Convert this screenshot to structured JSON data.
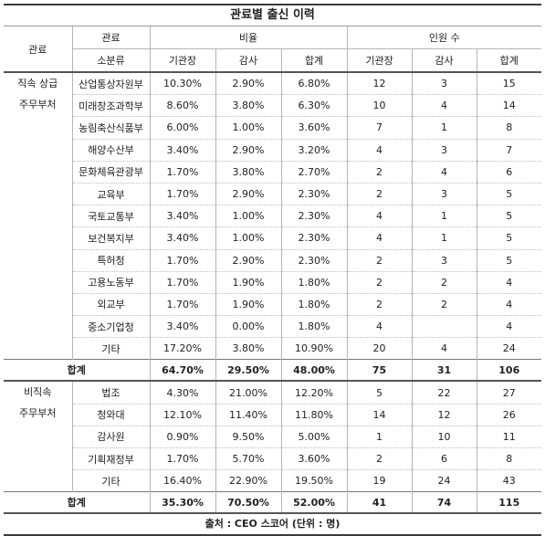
{
  "title": "관료별 출신 이력",
  "header": {
    "left_top": "관료",
    "left_sub": "관료",
    "left_sub2": "소분류",
    "ratio": "비율",
    "count": "인원 수",
    "cols": [
      "기관장",
      "감사",
      "합계",
      "기관장",
      "감사",
      "합계"
    ]
  },
  "group1": {
    "label_line1": "직속 상급",
    "label_line2": "주무부처",
    "rows": [
      {
        "name": "산업통상자원부",
        "vals": [
          "10.30%",
          "2.90%",
          "6.80%",
          "12",
          "3",
          "15"
        ]
      },
      {
        "name": "미래창조과학부",
        "vals": [
          "8.60%",
          "3.80%",
          "6.30%",
          "10",
          "4",
          "14"
        ]
      },
      {
        "name": "농림축산식품부",
        "vals": [
          "6.00%",
          "1.00%",
          "3.60%",
          "7",
          "1",
          "8"
        ]
      },
      {
        "name": "해양수산부",
        "vals": [
          "3.40%",
          "2.90%",
          "3.20%",
          "4",
          "3",
          "7"
        ]
      },
      {
        "name": "문화체육관광부",
        "vals": [
          "1.70%",
          "3.80%",
          "2.70%",
          "2",
          "4",
          "6"
        ]
      },
      {
        "name": "교육부",
        "vals": [
          "1.70%",
          "2.90%",
          "2.30%",
          "2",
          "3",
          "5"
        ]
      },
      {
        "name": "국토교통부",
        "vals": [
          "3.40%",
          "1.00%",
          "2.30%",
          "4",
          "1",
          "5"
        ]
      },
      {
        "name": "보건복지부",
        "vals": [
          "3.40%",
          "1.00%",
          "2.30%",
          "4",
          "1",
          "5"
        ]
      },
      {
        "name": "특허청",
        "vals": [
          "1.70%",
          "2.90%",
          "2.30%",
          "2",
          "3",
          "5"
        ]
      },
      {
        "name": "고용노동부",
        "vals": [
          "1.70%",
          "1.90%",
          "1.80%",
          "2",
          "2",
          "4"
        ]
      },
      {
        "name": "외교부",
        "vals": [
          "1.70%",
          "1.90%",
          "1.80%",
          "2",
          "2",
          "4"
        ]
      },
      {
        "name": "중소기업청",
        "vals": [
          "3.40%",
          "0.00%",
          "1.80%",
          "4",
          "",
          "4"
        ]
      },
      {
        "name": "기타",
        "vals": [
          "17.20%",
          "3.80%",
          "10.90%",
          "20",
          "4",
          "24"
        ]
      }
    ],
    "total": {
      "label": "합계",
      "vals": [
        "64.70%",
        "29.50%",
        "48.00%",
        "75",
        "31",
        "106"
      ]
    }
  },
  "group2": {
    "label_line1": "비직속",
    "label_line2": "주무부처",
    "rows": [
      {
        "name": "법조",
        "vals": [
          "4.30%",
          "21.00%",
          "12.20%",
          "5",
          "22",
          "27"
        ]
      },
      {
        "name": "청와대",
        "vals": [
          "12.10%",
          "11.40%",
          "11.80%",
          "14",
          "12",
          "26"
        ]
      },
      {
        "name": "감사원",
        "vals": [
          "0.90%",
          "9.50%",
          "5.00%",
          "1",
          "10",
          "11"
        ]
      },
      {
        "name": "기획재정부",
        "vals": [
          "1.70%",
          "5.70%",
          "3.60%",
          "2",
          "6",
          "8"
        ]
      },
      {
        "name": "기타",
        "vals": [
          "16.40%",
          "22.90%",
          "19.50%",
          "19",
          "24",
          "43"
        ]
      }
    ],
    "total": {
      "label": "합계",
      "vals": [
        "35.30%",
        "70.50%",
        "52.00%",
        "41",
        "74",
        "115"
      ]
    }
  },
  "footer": "출처 : CEO 스코어 (단위 : 명)"
}
